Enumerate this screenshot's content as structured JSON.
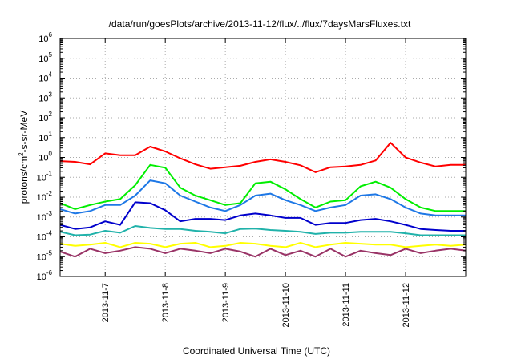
{
  "chart_data": {
    "type": "line",
    "title": "/data/run/goesPlots/archive/2013-11-12/flux/../flux/7daysMarsFluxes.txt",
    "xlabel": "Coordinated Universal Time (UTC)",
    "ylabel": {
      "base": "protons/cm",
      "sup": "2",
      "rest": "-s-sr-MeV"
    },
    "xlim": [
      "2013-11-06 06:00",
      "2013-11-13 00:00"
    ],
    "ylim": [
      1e-06,
      1000000.0
    ],
    "yscale": "log",
    "grid": true,
    "x_ticks": [
      "2013-11-7",
      "2013-11-8",
      "2013-11-9",
      "2013-11-10",
      "2013-11-11",
      "2013-11-12"
    ],
    "y_ticks": [
      {
        "base": "10",
        "exp": "-6"
      },
      {
        "base": "10",
        "exp": "-5"
      },
      {
        "base": "10",
        "exp": "-4"
      },
      {
        "base": "10",
        "exp": "-3"
      },
      {
        "base": "10",
        "exp": "-2"
      },
      {
        "base": "10",
        "exp": "-1"
      },
      {
        "base": "10",
        "exp": "0"
      },
      {
        "base": "10",
        "exp": "1"
      },
      {
        "base": "10",
        "exp": "2"
      },
      {
        "base": "10",
        "exp": "3"
      },
      {
        "base": "10",
        "exp": "4"
      },
      {
        "base": "10",
        "exp": "5"
      },
      {
        "base": "10",
        "exp": "6"
      }
    ],
    "x": [
      "2013-11-06 06:00",
      "2013-11-06 12:00",
      "2013-11-06 18:00",
      "2013-11-07 00:00",
      "2013-11-07 06:00",
      "2013-11-07 12:00",
      "2013-11-07 18:00",
      "2013-11-08 00:00",
      "2013-11-08 06:00",
      "2013-11-08 12:00",
      "2013-11-08 18:00",
      "2013-11-09 00:00",
      "2013-11-09 06:00",
      "2013-11-09 12:00",
      "2013-11-09 18:00",
      "2013-11-10 00:00",
      "2013-11-10 06:00",
      "2013-11-10 12:00",
      "2013-11-10 18:00",
      "2013-11-11 00:00",
      "2013-11-11 06:00",
      "2013-11-11 12:00",
      "2013-11-11 18:00",
      "2013-11-12 00:00",
      "2013-11-12 06:00",
      "2013-11-12 12:00",
      "2013-11-12 18:00",
      "2013-11-13 00:00"
    ],
    "series": [
      {
        "color": "#ff0000",
        "values": [
          0.65,
          0.6,
          0.45,
          1.6,
          1.3,
          1.3,
          3.5,
          2.0,
          0.9,
          0.45,
          0.27,
          0.32,
          0.38,
          0.6,
          0.8,
          0.6,
          0.4,
          0.18,
          0.32,
          0.35,
          0.42,
          0.7,
          5.5,
          1.0,
          0.55,
          0.35,
          0.42,
          0.42
        ]
      },
      {
        "color": "#00ee00",
        "values": [
          0.005,
          0.0025,
          0.004,
          0.006,
          0.008,
          0.04,
          0.42,
          0.3,
          0.03,
          0.012,
          0.007,
          0.004,
          0.005,
          0.05,
          0.06,
          0.025,
          0.008,
          0.003,
          0.006,
          0.007,
          0.035,
          0.06,
          0.03,
          0.008,
          0.003,
          0.002,
          0.002,
          0.002
        ]
      },
      {
        "color": "#1e78e6",
        "values": [
          0.0025,
          0.0015,
          0.002,
          0.004,
          0.004,
          0.012,
          0.07,
          0.05,
          0.012,
          0.006,
          0.003,
          0.002,
          0.004,
          0.012,
          0.015,
          0.007,
          0.004,
          0.002,
          0.003,
          0.004,
          0.012,
          0.014,
          0.008,
          0.003,
          0.0015,
          0.0012,
          0.0012,
          0.0012
        ]
      },
      {
        "color": "#0000cc",
        "values": [
          0.0004,
          0.00025,
          0.0003,
          0.0006,
          0.0004,
          0.0055,
          0.005,
          0.0022,
          0.0006,
          0.0008,
          0.0008,
          0.0007,
          0.0012,
          0.0015,
          0.0012,
          0.0009,
          0.0009,
          0.0004,
          0.0005,
          0.0005,
          0.0007,
          0.0008,
          0.0006,
          0.0004,
          0.00025,
          0.00022,
          0.0002,
          0.0002
        ]
      },
      {
        "color": "#20b2aa",
        "values": [
          0.00018,
          0.00012,
          0.00013,
          0.0002,
          0.00016,
          0.00035,
          0.00028,
          0.00025,
          0.00025,
          0.0002,
          0.00018,
          0.00015,
          0.00025,
          0.00026,
          0.00022,
          0.0002,
          0.00018,
          0.00014,
          0.00016,
          0.00016,
          0.00018,
          0.00018,
          0.00018,
          0.00015,
          0.00012,
          0.00012,
          0.00012,
          0.00012
        ]
      },
      {
        "color": "#ffff00",
        "values": [
          4.5e-05,
          3.5e-05,
          4e-05,
          5e-05,
          3e-05,
          5e-05,
          4.5e-05,
          3e-05,
          4.5e-05,
          5e-05,
          3e-05,
          3.5e-05,
          5e-05,
          4.5e-05,
          3.5e-05,
          3e-05,
          5e-05,
          3e-05,
          4e-05,
          5e-05,
          4.5e-05,
          4e-05,
          4e-05,
          3e-05,
          3.5e-05,
          4e-05,
          3.5e-05,
          4e-05
        ]
      },
      {
        "color": "#993366",
        "values": [
          1.8e-05,
          1e-05,
          2.5e-05,
          1.5e-05,
          2e-05,
          3e-05,
          2.5e-05,
          1.5e-05,
          2.5e-05,
          2e-05,
          1.5e-05,
          2.5e-05,
          1.8e-05,
          1e-05,
          2.5e-05,
          1.2e-05,
          2e-05,
          1e-05,
          2.5e-05,
          1e-05,
          2e-05,
          1.5e-05,
          1.2e-05,
          2.5e-05,
          1.5e-05,
          2e-05,
          2.5e-05,
          2e-05
        ]
      }
    ]
  }
}
